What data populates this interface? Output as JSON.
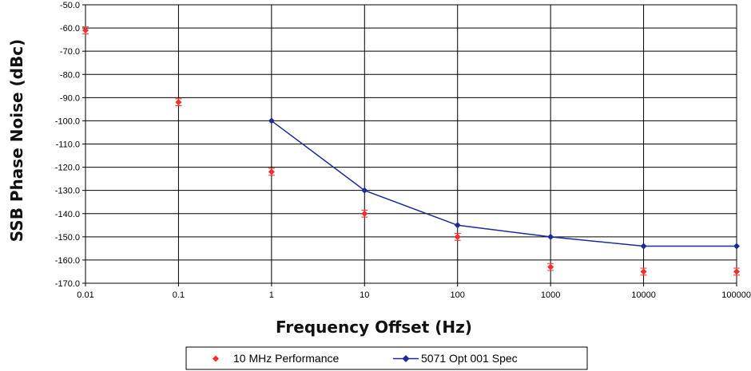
{
  "chart_data": {
    "type": "scatter",
    "title": "",
    "xlabel": "Frequency Offset (Hz)",
    "ylabel": "SSB Phase Noise (dBc)",
    "x_scale": "log",
    "xlim": [
      0.01,
      100000
    ],
    "ylim": [
      -170,
      -50
    ],
    "x_ticks": [
      "0.01",
      "0.1",
      "1",
      "10",
      "100",
      "1000",
      "10000",
      "100000"
    ],
    "y_ticks": [
      "-50.0",
      "-60.0",
      "-70.0",
      "-80.0",
      "-90.0",
      "-100.0",
      "-110.0",
      "-120.0",
      "-130.0",
      "-140.0",
      "-150.0",
      "-160.0",
      "-170.0"
    ],
    "grid": true,
    "legend_position": "bottom",
    "series": [
      {
        "name": "10 MHz Performance",
        "color": "#ff2a2a",
        "marker": "diamond",
        "line": false,
        "error_bars": true,
        "points": [
          {
            "x": 0.01,
            "y": -61,
            "err": 1.5
          },
          {
            "x": 0.1,
            "y": -92,
            "err": 1.5
          },
          {
            "x": 1,
            "y": -122,
            "err": 1.5
          },
          {
            "x": 10,
            "y": -140,
            "err": 1.5
          },
          {
            "x": 100,
            "y": -150,
            "err": 1.5
          },
          {
            "x": 1000,
            "y": -163,
            "err": 1.5
          },
          {
            "x": 10000,
            "y": -165,
            "err": 1.5
          },
          {
            "x": 100000,
            "y": -165,
            "err": 1.5
          }
        ]
      },
      {
        "name": "5071 Opt 001 Spec",
        "color": "#1c2a9a",
        "marker": "diamond",
        "line": true,
        "error_bars": false,
        "points": [
          {
            "x": 1,
            "y": -100
          },
          {
            "x": 10,
            "y": -130
          },
          {
            "x": 100,
            "y": -145
          },
          {
            "x": 1000,
            "y": -150
          },
          {
            "x": 10000,
            "y": -154
          },
          {
            "x": 100000,
            "y": -154
          }
        ]
      }
    ]
  }
}
